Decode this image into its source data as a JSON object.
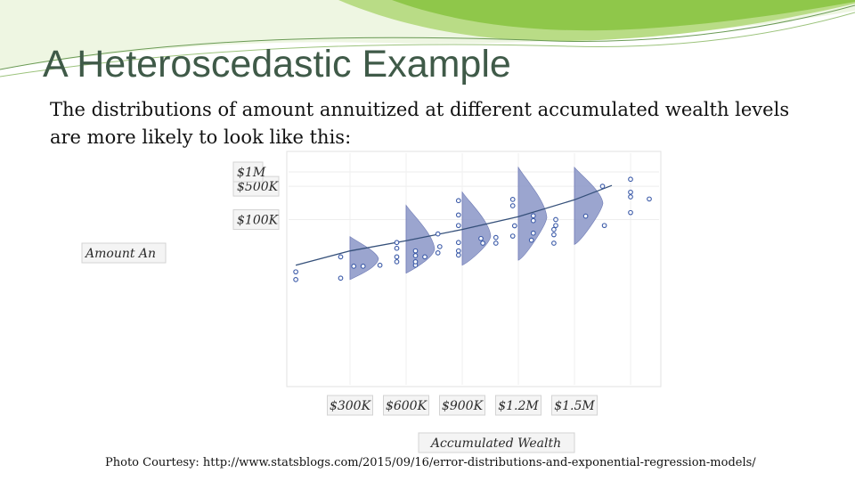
{
  "slide": {
    "title": "A Heteroscedastic Example",
    "body": "The distributions of amount annuitized at different accumulated wealth levels are more likely to look like this:",
    "credit": "Photo Courtesy: http://www.statsblogs.com/2015/09/16/error-distributions-and-exponential-regression-models/",
    "accent_colors": [
      "#8fc74a",
      "#c9e39a",
      "#3f5a48"
    ]
  },
  "chart_data": {
    "type": "scatter",
    "xlabel": "Accumulated Wealth",
    "ylabel": "Amount An",
    "y_ticks": [
      {
        "label": "$100K",
        "value": 100000
      },
      {
        "label": "$500K",
        "value": 500000
      },
      {
        "label": "$1M",
        "value": 1000000
      }
    ],
    "x_ticks": [
      {
        "label": "$300K",
        "value": 300000
      },
      {
        "label": "$600K",
        "value": 600000
      },
      {
        "label": "$900K",
        "value": 900000
      },
      {
        "label": "$1.2M",
        "value": 1200000
      },
      {
        "label": "$1.5M",
        "value": 1500000
      }
    ],
    "y_scale": "log",
    "grid": true,
    "trend": "exponential",
    "trend_points": [
      [
        10000,
        11000
      ],
      [
        300000,
        22000
      ],
      [
        600000,
        36000
      ],
      [
        900000,
        62000
      ],
      [
        1200000,
        115000
      ],
      [
        1500000,
        260000
      ],
      [
        1700000,
        520000
      ]
    ],
    "distributions": [
      {
        "x": 300000,
        "low": 5500,
        "mode": 15000,
        "high": 44000
      },
      {
        "x": 600000,
        "low": 7500,
        "mode": 24000,
        "high": 200000
      },
      {
        "x": 900000,
        "low": 11000,
        "mode": 45000,
        "high": 380000
      },
      {
        "x": 1200000,
        "low": 14000,
        "mode": 110000,
        "high": 1250000
      },
      {
        "x": 1500000,
        "low": 30000,
        "mode": 220000,
        "high": 1250000
      }
    ],
    "points": [
      [
        10000,
        8000
      ],
      [
        10000,
        5500
      ],
      [
        250000,
        5900
      ],
      [
        250000,
        16500
      ],
      [
        320000,
        10500
      ],
      [
        370000,
        10500
      ],
      [
        460000,
        11000
      ],
      [
        550000,
        13000
      ],
      [
        550000,
        16500
      ],
      [
        550000,
        25000
      ],
      [
        550000,
        33000
      ],
      [
        650000,
        11000
      ],
      [
        650000,
        13000
      ],
      [
        650000,
        17500
      ],
      [
        650000,
        22000
      ],
      [
        700000,
        16500
      ],
      [
        770000,
        20000
      ],
      [
        780000,
        27000
      ],
      [
        770000,
        50000
      ],
      [
        880000,
        18000
      ],
      [
        880000,
        22000
      ],
      [
        880000,
        33000
      ],
      [
        880000,
        75000
      ],
      [
        880000,
        125000
      ],
      [
        880000,
        250000
      ],
      [
        1000000,
        40000
      ],
      [
        1010000,
        32000
      ],
      [
        1080000,
        32000
      ],
      [
        1080000,
        42000
      ],
      [
        1170000,
        45000
      ],
      [
        1180000,
        74000
      ],
      [
        1170000,
        195000
      ],
      [
        1170000,
        265000
      ],
      [
        1270000,
        37000
      ],
      [
        1280000,
        52000
      ],
      [
        1280000,
        95000
      ],
      [
        1280000,
        120000
      ],
      [
        1390000,
        32000
      ],
      [
        1390000,
        48000
      ],
      [
        1390000,
        62000
      ],
      [
        1400000,
        75000
      ],
      [
        1400000,
        100000
      ],
      [
        1560000,
        118000
      ],
      [
        1660000,
        75000
      ],
      [
        1650000,
        500000
      ],
      [
        1800000,
        140000
      ],
      [
        1800000,
        375000
      ],
      [
        1800000,
        300000
      ],
      [
        1800000,
        700000
      ],
      [
        1900000,
        270000
      ]
    ]
  }
}
